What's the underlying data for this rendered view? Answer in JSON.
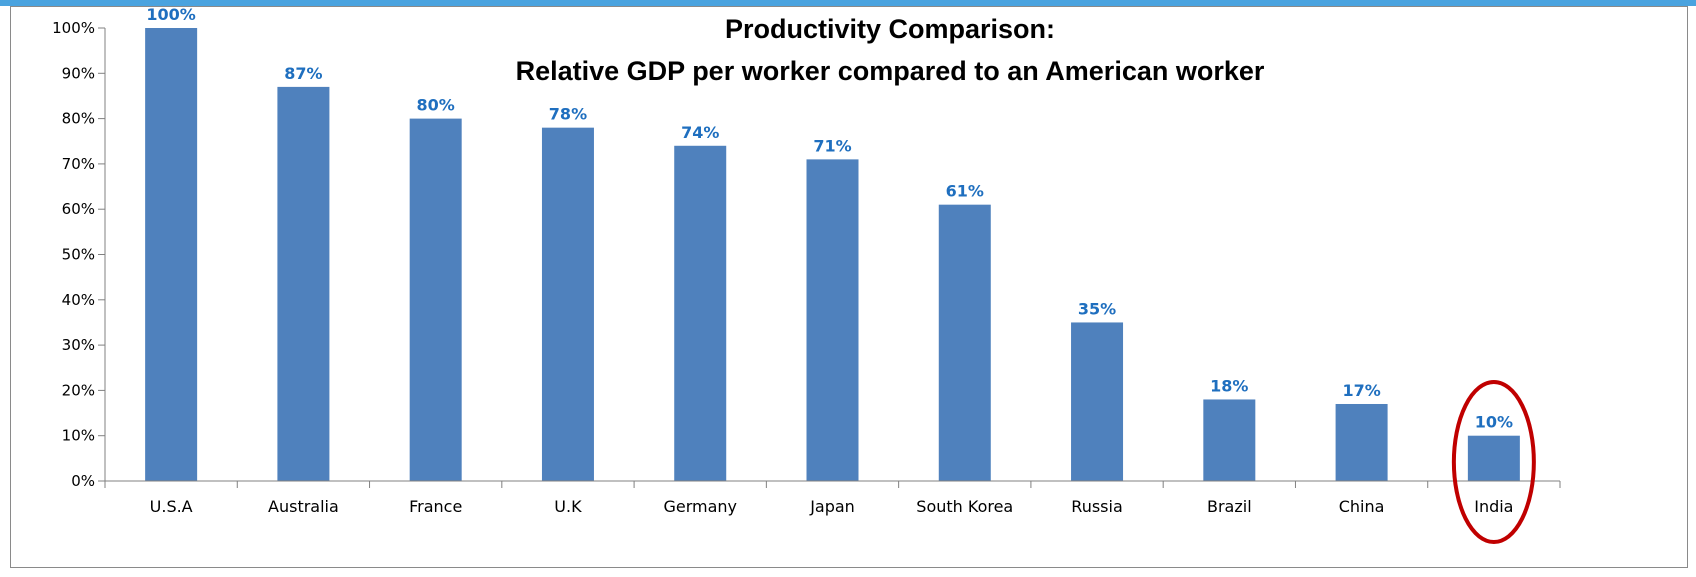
{
  "chart_data": {
    "type": "bar",
    "title_lines": [
      "Productivity Comparison:",
      "Relative GDP per worker compared to an American worker"
    ],
    "categories": [
      "U.S.A",
      "Australia",
      "France",
      "U.K",
      "Germany",
      "Japan",
      "South Korea",
      "Russia",
      "Brazil",
      "China",
      "India"
    ],
    "values": [
      100,
      87,
      80,
      78,
      74,
      71,
      61,
      35,
      18,
      17,
      10
    ],
    "data_labels": [
      "100%",
      "87%",
      "80%",
      "78%",
      "74%",
      "71%",
      "61%",
      "35%",
      "18%",
      "17%",
      "10%"
    ],
    "y_ticks": [
      "0%",
      "10%",
      "20%",
      "30%",
      "40%",
      "50%",
      "60%",
      "70%",
      "80%",
      "90%",
      "100%"
    ],
    "ylim": [
      0,
      100
    ],
    "xlabel": "",
    "ylabel": "",
    "grid": false,
    "legend": "none",
    "highlighted_category": "India",
    "colors": {
      "bar": "#4f81bd",
      "data_label": "#1f6fbf",
      "highlight_ring": "#c00000",
      "axis": "#808080",
      "top_bar": "#4aa3df"
    }
  }
}
